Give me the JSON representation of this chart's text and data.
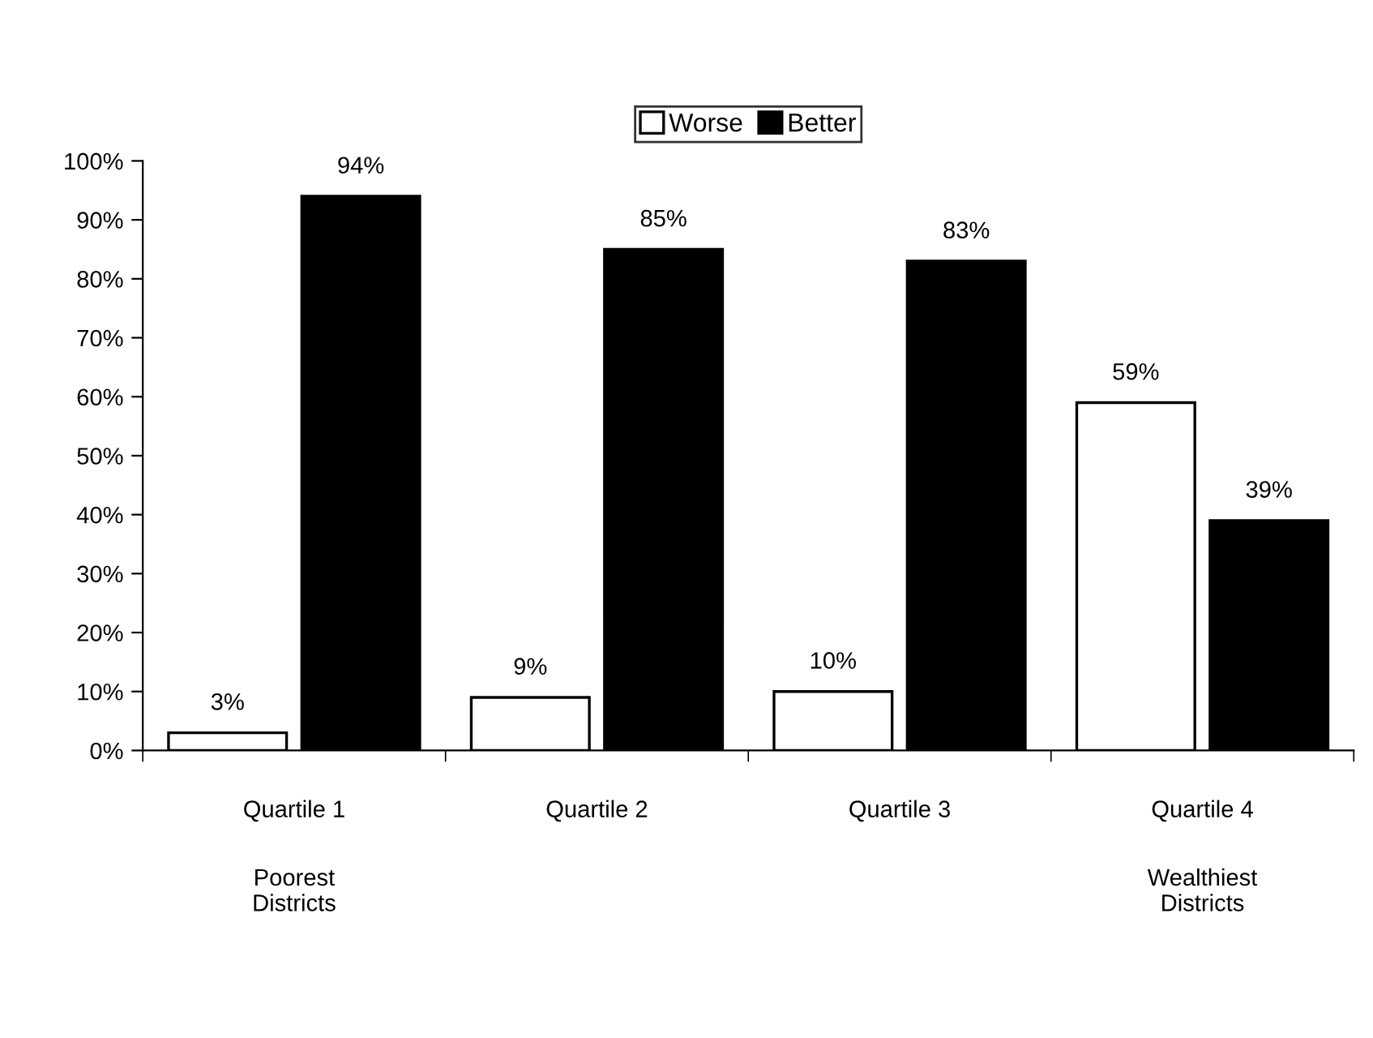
{
  "chart_data": {
    "type": "bar",
    "categories": [
      "Quartile 1",
      "Quartile 2",
      "Quartile 3",
      "Quartile 4"
    ],
    "series": [
      {
        "name": "Worse",
        "color": "#ffffff",
        "values": [
          3,
          9,
          10,
          59
        ],
        "value_labels": [
          "3%",
          "9%",
          "10%",
          "59%"
        ]
      },
      {
        "name": "Better",
        "color": "#000000",
        "values": [
          94,
          85,
          83,
          39
        ],
        "value_labels": [
          "94%",
          "85%",
          "83%",
          "39%"
        ]
      }
    ],
    "ylim": [
      0,
      100
    ],
    "yticks": [
      {
        "value": 0,
        "label": "0%"
      },
      {
        "value": 10,
        "label": "10%"
      },
      {
        "value": 20,
        "label": "20%"
      },
      {
        "value": 30,
        "label": "30%"
      },
      {
        "value": 40,
        "label": "40%"
      },
      {
        "value": 50,
        "label": "50%"
      },
      {
        "value": 60,
        "label": "60%"
      },
      {
        "value": 70,
        "label": "70%"
      },
      {
        "value": 80,
        "label": "80%"
      },
      {
        "value": 90,
        "label": "90%"
      },
      {
        "value": 100,
        "label": "100%"
      }
    ],
    "grid": false,
    "legend": "top",
    "annotations": [
      "Poorest\nDistricts",
      "Wealthiest\nDistricts"
    ]
  }
}
